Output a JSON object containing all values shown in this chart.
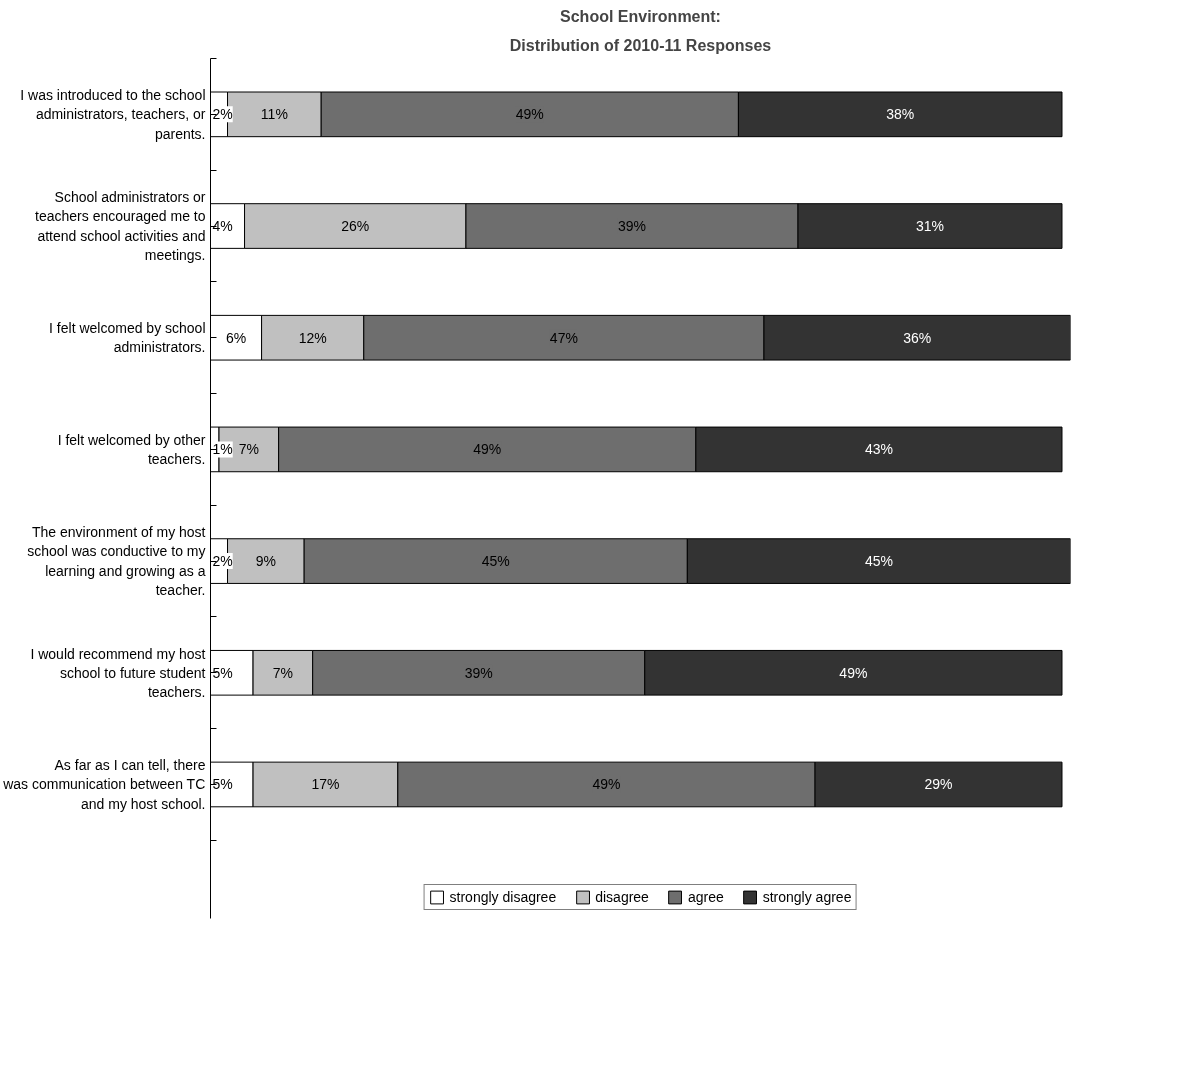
{
  "chart_data": {
    "type": "bar",
    "orientation": "horizontal",
    "stacked": true,
    "title": "School Environment:",
    "subtitle": "Distribution of 2010-11 Responses",
    "legend": "bottom",
    "tick_labels": "y",
    "grid": false,
    "categories": [
      "I was introduced to the school administrators, teachers, or parents.",
      "School administrators or teachers encouraged me to attend school activities and meetings.",
      "I felt welcomed by school administrators.",
      "I felt welcomed by other teachers.",
      "The environment of my host school was conductive to my learning and growing as a teacher.",
      "I would recommend my host school to future student teachers.",
      "As far as I can tell, there was communication between TC and my host school."
    ],
    "series": [
      {
        "name": "strongly disagree",
        "color": "#ffffff",
        "values": [
          2,
          4,
          6,
          1,
          2,
          5,
          5
        ],
        "value_labels": [
          "2%",
          "4%",
          "6%",
          "1%",
          "2%",
          "5%",
          "5%"
        ]
      },
      {
        "name": "disagree",
        "color": "#c0c0c0",
        "values": [
          11,
          26,
          12,
          7,
          9,
          7,
          17
        ],
        "value_labels": [
          "11%",
          "26%",
          "12%",
          "7%",
          "9%",
          "7%",
          "17%"
        ]
      },
      {
        "name": "agree",
        "color": "#6e6e6e",
        "values": [
          49,
          39,
          47,
          49,
          45,
          39,
          49
        ],
        "value_labels": [
          "49%",
          "39%",
          "47%",
          "49%",
          "45%",
          "39%",
          "49%"
        ]
      },
      {
        "name": "strongly agree",
        "color": "#333333",
        "values": [
          38,
          31,
          36,
          43,
          45,
          49,
          29
        ],
        "value_labels": [
          "38%",
          "31%",
          "36%",
          "43%",
          "45%",
          "49%",
          "29%"
        ]
      }
    ]
  }
}
